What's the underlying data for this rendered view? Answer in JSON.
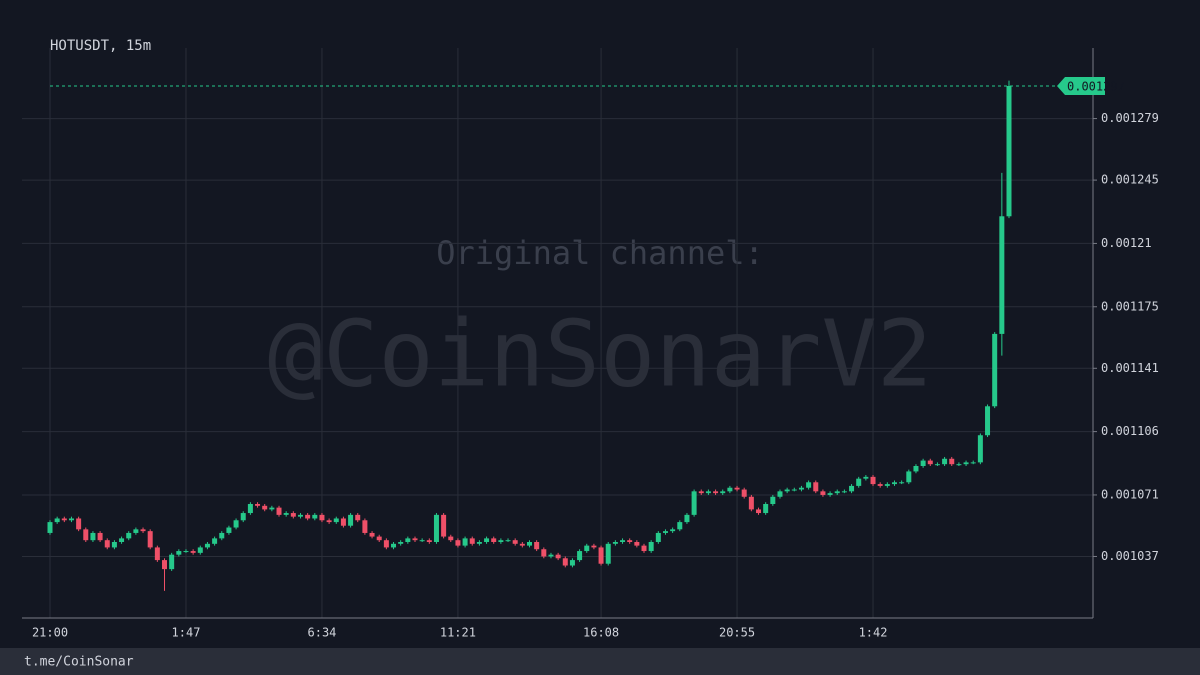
{
  "chart_data": {
    "type": "candlestick",
    "title": "HOTUSDT, 15m",
    "watermark": [
      "Original channel:",
      "@CoinSonarV2"
    ],
    "footer": "t.me/CoinSonar",
    "up_color": "#26c98b",
    "down_color": "#ef5068",
    "ylim": [
      0.001003,
      0.001318
    ],
    "yticks": [
      0.001037,
      0.001071,
      0.001106,
      0.001141,
      0.001175,
      0.00121,
      0.001245,
      0.001279
    ],
    "grid": true,
    "categories": [
      "21:00",
      null,
      null,
      null,
      null,
      null,
      null,
      null,
      null,
      null,
      null,
      null,
      null,
      null,
      null,
      null,
      null,
      null,
      null,
      "1:47",
      null,
      null,
      null,
      null,
      null,
      null,
      null,
      null,
      null,
      null,
      null,
      null,
      null,
      null,
      null,
      null,
      null,
      null,
      "6:34",
      null,
      null,
      null,
      null,
      null,
      null,
      null,
      null,
      null,
      null,
      null,
      null,
      null,
      null,
      null,
      null,
      null,
      null,
      "11:21",
      null,
      null,
      null,
      null,
      null,
      null,
      null,
      null,
      null,
      null,
      null,
      null,
      null,
      null,
      null,
      null,
      null,
      null,
      null,
      "16:08",
      null,
      null,
      null,
      null,
      null,
      null,
      null,
      null,
      null,
      null,
      null,
      null,
      null,
      null,
      null,
      null,
      null,
      null,
      "20:55",
      null,
      null,
      null,
      null,
      null,
      null,
      null,
      null,
      null,
      null,
      null,
      null,
      null,
      null,
      null,
      null,
      null,
      null,
      "1:42",
      null,
      null,
      null,
      null,
      null,
      null,
      null,
      null,
      null,
      null,
      null,
      null,
      null,
      null,
      null,
      null,
      null,
      null,
      null
    ],
    "candles": [
      [
        0.00105,
        0.001057,
        0.001049,
        0.001056
      ],
      [
        0.001056,
        0.001059,
        0.001055,
        0.001058
      ],
      [
        0.001058,
        0.001059,
        0.001056,
        0.001057
      ],
      [
        0.001057,
        0.001059,
        0.001056,
        0.001058
      ],
      [
        0.001058,
        0.001059,
        0.001051,
        0.001052
      ],
      [
        0.001052,
        0.001053,
        0.001045,
        0.001046
      ],
      [
        0.001046,
        0.001051,
        0.001045,
        0.00105
      ],
      [
        0.00105,
        0.001051,
        0.001045,
        0.001046
      ],
      [
        0.001046,
        0.001047,
        0.001041,
        0.001042
      ],
      [
        0.001042,
        0.001046,
        0.001041,
        0.001045
      ],
      [
        0.001045,
        0.001048,
        0.001044,
        0.001047
      ],
      [
        0.001047,
        0.001051,
        0.001046,
        0.00105
      ],
      [
        0.00105,
        0.001053,
        0.001049,
        0.001052
      ],
      [
        0.001052,
        0.001053,
        0.00105,
        0.001051
      ],
      [
        0.001051,
        0.001052,
        0.001041,
        0.001042
      ],
      [
        0.001042,
        0.001043,
        0.001034,
        0.001035
      ],
      [
        0.001035,
        0.001036,
        0.001018,
        0.00103
      ],
      [
        0.00103,
        0.001039,
        0.001029,
        0.001038
      ],
      [
        0.001038,
        0.001041,
        0.001037,
        0.00104
      ],
      [
        0.00104,
        0.001041,
        0.001039,
        0.00104
      ],
      [
        0.00104,
        0.001041,
        0.001038,
        0.001039
      ],
      [
        0.001039,
        0.001043,
        0.001038,
        0.001042
      ],
      [
        0.001042,
        0.001045,
        0.001041,
        0.001044
      ],
      [
        0.001044,
        0.001048,
        0.001043,
        0.001047
      ],
      [
        0.001047,
        0.001051,
        0.001046,
        0.00105
      ],
      [
        0.00105,
        0.001054,
        0.001049,
        0.001053
      ],
      [
        0.001053,
        0.001058,
        0.001052,
        0.001057
      ],
      [
        0.001057,
        0.001062,
        0.001056,
        0.001061
      ],
      [
        0.001061,
        0.001067,
        0.00106,
        0.001066
      ],
      [
        0.001066,
        0.001067,
        0.001064,
        0.001065
      ],
      [
        0.001065,
        0.001066,
        0.001062,
        0.001063
      ],
      [
        0.001063,
        0.001065,
        0.001062,
        0.001064
      ],
      [
        0.001064,
        0.001065,
        0.001059,
        0.00106
      ],
      [
        0.00106,
        0.001062,
        0.001059,
        0.001061
      ],
      [
        0.001061,
        0.001062,
        0.001058,
        0.001059
      ],
      [
        0.001059,
        0.001061,
        0.001058,
        0.00106
      ],
      [
        0.00106,
        0.001061,
        0.001057,
        0.001058
      ],
      [
        0.001058,
        0.001061,
        0.001057,
        0.00106
      ],
      [
        0.00106,
        0.001061,
        0.001056,
        0.001057
      ],
      [
        0.001057,
        0.001058,
        0.001055,
        0.001056
      ],
      [
        0.001056,
        0.001059,
        0.001055,
        0.001058
      ],
      [
        0.001058,
        0.001059,
        0.001053,
        0.001054
      ],
      [
        0.001054,
        0.001061,
        0.001053,
        0.00106
      ],
      [
        0.00106,
        0.001061,
        0.001056,
        0.001057
      ],
      [
        0.001057,
        0.001058,
        0.001049,
        0.00105
      ],
      [
        0.00105,
        0.001051,
        0.001047,
        0.001048
      ],
      [
        0.001048,
        0.001049,
        0.001045,
        0.001046
      ],
      [
        0.001046,
        0.001047,
        0.001041,
        0.001042
      ],
      [
        0.001042,
        0.001045,
        0.001041,
        0.001044
      ],
      [
        0.001044,
        0.001046,
        0.001043,
        0.001045
      ],
      [
        0.001045,
        0.001048,
        0.001044,
        0.001047
      ],
      [
        0.001047,
        0.001048,
        0.001045,
        0.001046
      ],
      [
        0.001046,
        0.001047,
        0.001045,
        0.001046
      ],
      [
        0.001046,
        0.001047,
        0.001044,
        0.001045
      ],
      [
        0.001045,
        0.001061,
        0.001044,
        0.00106
      ],
      [
        0.00106,
        0.001061,
        0.001047,
        0.001048
      ],
      [
        0.001048,
        0.001049,
        0.001045,
        0.001046
      ],
      [
        0.001046,
        0.001047,
        0.001042,
        0.001043
      ],
      [
        0.001043,
        0.001048,
        0.001042,
        0.001047
      ],
      [
        0.001047,
        0.001048,
        0.001043,
        0.001044
      ],
      [
        0.001044,
        0.001046,
        0.001043,
        0.001045
      ],
      [
        0.001045,
        0.001048,
        0.001044,
        0.001047
      ],
      [
        0.001047,
        0.001048,
        0.001044,
        0.001045
      ],
      [
        0.001045,
        0.001047,
        0.001044,
        0.001046
      ],
      [
        0.001046,
        0.001047,
        0.001045,
        0.001046
      ],
      [
        0.001046,
        0.001047,
        0.001043,
        0.001044
      ],
      [
        0.001044,
        0.001045,
        0.001042,
        0.001043
      ],
      [
        0.001043,
        0.001046,
        0.001042,
        0.001045
      ],
      [
        0.001045,
        0.001046,
        0.00104,
        0.001041
      ],
      [
        0.001041,
        0.001042,
        0.001036,
        0.001037
      ],
      [
        0.001037,
        0.001039,
        0.001036,
        0.001038
      ],
      [
        0.001038,
        0.001039,
        0.001035,
        0.001036
      ],
      [
        0.001036,
        0.001037,
        0.001031,
        0.001032
      ],
      [
        0.001032,
        0.001036,
        0.001031,
        0.001035
      ],
      [
        0.001035,
        0.001041,
        0.001034,
        0.00104
      ],
      [
        0.00104,
        0.001044,
        0.001039,
        0.001043
      ],
      [
        0.001043,
        0.001044,
        0.001041,
        0.001042
      ],
      [
        0.001042,
        0.001043,
        0.001032,
        0.001033
      ],
      [
        0.001033,
        0.001045,
        0.001032,
        0.001044
      ],
      [
        0.001044,
        0.001046,
        0.001043,
        0.001045
      ],
      [
        0.001045,
        0.001047,
        0.001044,
        0.001046
      ],
      [
        0.001046,
        0.001047,
        0.001044,
        0.001045
      ],
      [
        0.001045,
        0.001046,
        0.001042,
        0.001043
      ],
      [
        0.001043,
        0.001044,
        0.001039,
        0.00104
      ],
      [
        0.00104,
        0.001046,
        0.001039,
        0.001045
      ],
      [
        0.001045,
        0.001051,
        0.001044,
        0.00105
      ],
      [
        0.00105,
        0.001052,
        0.001049,
        0.001051
      ],
      [
        0.001051,
        0.001053,
        0.00105,
        0.001052
      ],
      [
        0.001052,
        0.001057,
        0.001051,
        0.001056
      ],
      [
        0.001056,
        0.001061,
        0.001055,
        0.00106
      ],
      [
        0.00106,
        0.001074,
        0.001059,
        0.001073
      ],
      [
        0.001073,
        0.001074,
        0.001071,
        0.001072
      ],
      [
        0.001072,
        0.001074,
        0.001071,
        0.001073
      ],
      [
        0.001073,
        0.001074,
        0.001071,
        0.001072
      ],
      [
        0.001072,
        0.001074,
        0.001071,
        0.001073
      ],
      [
        0.001073,
        0.001076,
        0.001072,
        0.001075
      ],
      [
        0.001075,
        0.001076,
        0.001073,
        0.001074
      ],
      [
        0.001074,
        0.001075,
        0.001069,
        0.00107
      ],
      [
        0.00107,
        0.001071,
        0.001062,
        0.001063
      ],
      [
        0.001063,
        0.001064,
        0.00106,
        0.001061
      ],
      [
        0.001061,
        0.001067,
        0.00106,
        0.001066
      ],
      [
        0.001066,
        0.001071,
        0.001065,
        0.00107
      ],
      [
        0.00107,
        0.001074,
        0.001069,
        0.001073
      ],
      [
        0.001073,
        0.001075,
        0.001072,
        0.001074
      ],
      [
        0.001074,
        0.001075,
        0.001073,
        0.001074
      ],
      [
        0.001074,
        0.001076,
        0.001073,
        0.001075
      ],
      [
        0.001075,
        0.001079,
        0.001074,
        0.001078
      ],
      [
        0.001078,
        0.001079,
        0.001072,
        0.001073
      ],
      [
        0.001073,
        0.001074,
        0.00107,
        0.001071
      ],
      [
        0.001071,
        0.001073,
        0.00107,
        0.001072
      ],
      [
        0.001072,
        0.001074,
        0.001071,
        0.001073
      ],
      [
        0.001073,
        0.001074,
        0.001072,
        0.001073
      ],
      [
        0.001073,
        0.001077,
        0.001072,
        0.001076
      ],
      [
        0.001076,
        0.001081,
        0.001075,
        0.00108
      ],
      [
        0.00108,
        0.001082,
        0.001079,
        0.001081
      ],
      [
        0.001081,
        0.001082,
        0.001076,
        0.001077
      ],
      [
        0.001077,
        0.001078,
        0.001075,
        0.001076
      ],
      [
        0.001076,
        0.001078,
        0.001075,
        0.001077
      ],
      [
        0.001077,
        0.001079,
        0.001076,
        0.001078
      ],
      [
        0.001078,
        0.001079,
        0.001077,
        0.001078
      ],
      [
        0.001078,
        0.001085,
        0.001077,
        0.001084
      ],
      [
        0.001084,
        0.001088,
        0.001083,
        0.001087
      ],
      [
        0.001087,
        0.001091,
        0.001086,
        0.00109
      ],
      [
        0.00109,
        0.001091,
        0.001087,
        0.001088
      ],
      [
        0.001088,
        0.001089,
        0.001087,
        0.001088
      ],
      [
        0.001088,
        0.001092,
        0.001087,
        0.001091
      ],
      [
        0.001091,
        0.001092,
        0.001087,
        0.001088
      ],
      [
        0.001088,
        0.001089,
        0.001087,
        0.001088
      ],
      [
        0.001088,
        0.00109,
        0.001087,
        0.001089
      ],
      [
        0.001089,
        0.00109,
        0.001088,
        0.001089
      ],
      [
        0.001089,
        0.001105,
        0.001088,
        0.001104
      ],
      [
        0.001104,
        0.001121,
        0.001103,
        0.00112
      ],
      [
        0.00112,
        0.001161,
        0.001119,
        0.00116
      ],
      [
        0.00116,
        0.001249,
        0.001148,
        0.001225
      ],
      [
        0.001225,
        0.0013,
        0.001224,
        0.001297
      ]
    ]
  }
}
